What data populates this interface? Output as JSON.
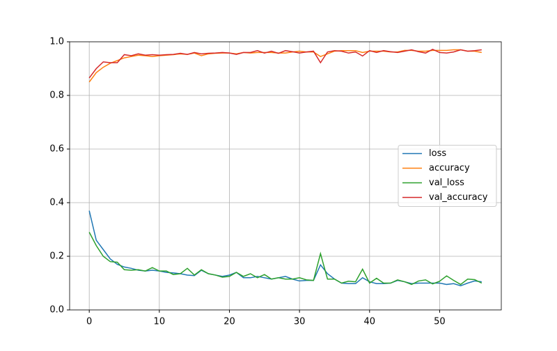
{
  "chart_data": {
    "type": "line",
    "x": [
      0,
      1,
      2,
      3,
      4,
      5,
      6,
      7,
      8,
      9,
      10,
      11,
      12,
      13,
      14,
      15,
      16,
      17,
      18,
      19,
      20,
      21,
      22,
      23,
      24,
      25,
      26,
      27,
      28,
      29,
      30,
      31,
      32,
      33,
      34,
      35,
      36,
      37,
      38,
      39,
      40,
      41,
      42,
      43,
      44,
      45,
      46,
      47,
      48,
      49,
      50,
      51,
      52,
      53,
      54,
      55,
      56
    ],
    "series": [
      {
        "name": "loss",
        "color": "#1f77b4",
        "values": [
          0.37,
          0.26,
          0.225,
          0.19,
          0.17,
          0.16,
          0.155,
          0.148,
          0.145,
          0.148,
          0.145,
          0.14,
          0.138,
          0.135,
          0.13,
          0.128,
          0.148,
          0.135,
          0.13,
          0.125,
          0.13,
          0.14,
          0.12,
          0.12,
          0.125,
          0.12,
          0.115,
          0.12,
          0.125,
          0.115,
          0.108,
          0.11,
          0.11,
          0.168,
          0.135,
          0.115,
          0.1,
          0.098,
          0.098,
          0.12,
          0.105,
          0.098,
          0.098,
          0.1,
          0.11,
          0.105,
          0.098,
          0.1,
          0.1,
          0.1,
          0.1,
          0.095,
          0.098,
          0.09,
          0.1,
          0.108,
          0.105
        ]
      },
      {
        "name": "accuracy",
        "color": "#ff7f0e",
        "values": [
          0.85,
          0.885,
          0.905,
          0.92,
          0.93,
          0.94,
          0.945,
          0.95,
          0.948,
          0.945,
          0.948,
          0.95,
          0.952,
          0.955,
          0.953,
          0.958,
          0.948,
          0.955,
          0.957,
          0.958,
          0.958,
          0.955,
          0.96,
          0.958,
          0.96,
          0.96,
          0.96,
          0.958,
          0.958,
          0.962,
          0.965,
          0.962,
          0.962,
          0.945,
          0.955,
          0.965,
          0.967,
          0.967,
          0.967,
          0.96,
          0.965,
          0.965,
          0.965,
          0.962,
          0.962,
          0.968,
          0.968,
          0.965,
          0.965,
          0.968,
          0.968,
          0.968,
          0.97,
          0.97,
          0.965,
          0.965,
          0.96
        ]
      },
      {
        "name": "val_loss",
        "color": "#2ca02c",
        "values": [
          0.29,
          0.24,
          0.2,
          0.18,
          0.178,
          0.15,
          0.148,
          0.15,
          0.145,
          0.158,
          0.145,
          0.145,
          0.132,
          0.135,
          0.155,
          0.13,
          0.15,
          0.135,
          0.13,
          0.122,
          0.125,
          0.14,
          0.125,
          0.135,
          0.12,
          0.132,
          0.115,
          0.12,
          0.115,
          0.115,
          0.12,
          0.112,
          0.11,
          0.21,
          0.115,
          0.115,
          0.1,
          0.107,
          0.105,
          0.152,
          0.1,
          0.118,
          0.1,
          0.1,
          0.112,
          0.105,
          0.095,
          0.108,
          0.112,
          0.097,
          0.107,
          0.127,
          0.11,
          0.095,
          0.115,
          0.113,
          0.1
        ]
      },
      {
        "name": "val_accuracy",
        "color": "#d62728",
        "values": [
          0.865,
          0.9,
          0.925,
          0.922,
          0.922,
          0.952,
          0.948,
          0.955,
          0.95,
          0.952,
          0.95,
          0.952,
          0.953,
          0.957,
          0.953,
          0.96,
          0.955,
          0.957,
          0.958,
          0.96,
          0.958,
          0.953,
          0.96,
          0.96,
          0.967,
          0.958,
          0.965,
          0.957,
          0.967,
          0.963,
          0.958,
          0.962,
          0.965,
          0.922,
          0.962,
          0.967,
          0.965,
          0.958,
          0.962,
          0.947,
          0.967,
          0.96,
          0.967,
          0.963,
          0.96,
          0.965,
          0.97,
          0.963,
          0.958,
          0.972,
          0.96,
          0.958,
          0.962,
          0.97,
          0.965,
          0.967,
          0.97
        ]
      }
    ],
    "xlim": [
      -2.8,
      58.8
    ],
    "xticks": [
      0,
      10,
      20,
      30,
      40,
      50
    ],
    "ylim": [
      0,
      1
    ],
    "yticks": [
      {
        "value": 0,
        "label": "0.0"
      },
      0.2,
      0.4,
      0.6,
      0.8,
      {
        "value": 1,
        "label": "1.0"
      }
    ],
    "grid": true,
    "legend": "center right"
  }
}
